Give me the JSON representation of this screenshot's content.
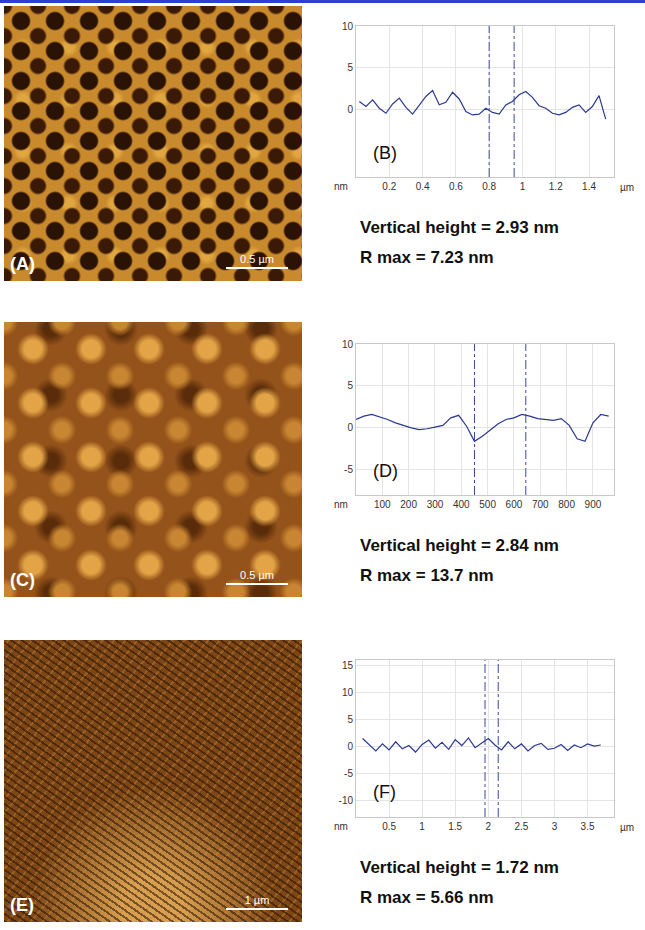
{
  "images": [
    {
      "label": "(A)",
      "scale_bar": "0.5 µm"
    },
    {
      "label": "(C)",
      "scale_bar": "0.5 µm"
    },
    {
      "label": "(E)",
      "scale_bar": "1 µm"
    }
  ],
  "chart_data": [
    {
      "type": "line",
      "label": "(B)",
      "xlabel": "µm",
      "ylabel": "nm",
      "color": "#2b3990",
      "line_style": "solid",
      "grid": true,
      "x": [
        0.02,
        0.06,
        0.1,
        0.14,
        0.18,
        0.22,
        0.26,
        0.3,
        0.34,
        0.38,
        0.42,
        0.46,
        0.5,
        0.54,
        0.58,
        0.62,
        0.66,
        0.7,
        0.74,
        0.78,
        0.82,
        0.86,
        0.9,
        0.94,
        0.98,
        1.02,
        1.06,
        1.1,
        1.14,
        1.18,
        1.22,
        1.26,
        1.3,
        1.34,
        1.38,
        1.42,
        1.46,
        1.5
      ],
      "values": [
        1.0,
        0.4,
        1.2,
        0.2,
        -0.4,
        0.7,
        1.4,
        0.3,
        -0.5,
        0.5,
        1.6,
        2.3,
        0.6,
        0.9,
        2.1,
        1.3,
        -0.2,
        -0.6,
        -0.5,
        0.2,
        -0.3,
        -0.5,
        0.6,
        1.0,
        1.8,
        2.2,
        1.5,
        0.5,
        0.2,
        -0.4,
        -0.6,
        -0.3,
        0.3,
        0.6,
        -0.3,
        0.4,
        1.7,
        -1.1
      ],
      "xlim": [
        0,
        1.55
      ],
      "xticks": [
        0.2,
        0.4,
        0.6,
        0.8,
        1,
        1.2,
        1.4
      ],
      "ylim": [
        -8,
        10
      ],
      "yticks": [
        0,
        5,
        10
      ],
      "cursors": [
        0.8,
        0.95
      ],
      "annotations": [
        "Vertical height = 2.93 nm",
        "R max = 7.23 nm"
      ]
    },
    {
      "type": "line",
      "label": "(D)",
      "ylabel": "nm",
      "color": "#2b3990",
      "line_style": "solid",
      "grid": true,
      "x": [
        0,
        30,
        60,
        90,
        120,
        150,
        180,
        210,
        240,
        270,
        300,
        330,
        360,
        390,
        420,
        450,
        480,
        510,
        540,
        570,
        600,
        630,
        660,
        690,
        720,
        750,
        780,
        810,
        840,
        870,
        900,
        930,
        960
      ],
      "values": [
        1.0,
        1.4,
        1.6,
        1.3,
        1.0,
        0.6,
        0.3,
        0.0,
        -0.2,
        -0.1,
        0.1,
        0.3,
        1.2,
        1.5,
        0.2,
        -1.6,
        -1.0,
        -0.3,
        0.5,
        1.0,
        1.2,
        1.6,
        1.4,
        1.1,
        1.0,
        0.9,
        1.1,
        0.3,
        -1.3,
        -1.6,
        0.6,
        1.6,
        1.4
      ],
      "xlim": [
        0,
        980
      ],
      "xticks": [
        100,
        200,
        300,
        400,
        500,
        600,
        700,
        800,
        900
      ],
      "ylim": [
        -8,
        10
      ],
      "yticks": [
        -5,
        0,
        5,
        10
      ],
      "cursors": [
        450,
        645
      ],
      "annotations": [
        "Vertical height = 2.84 nm",
        "R max = 13.7 nm"
      ]
    },
    {
      "type": "line",
      "label": "(F)",
      "xlabel": "µm",
      "ylabel": "nm",
      "color": "#2b3990",
      "line_style": "solid",
      "grid": true,
      "x": [
        0.1,
        0.2,
        0.3,
        0.4,
        0.5,
        0.6,
        0.7,
        0.8,
        0.9,
        1.0,
        1.1,
        1.2,
        1.3,
        1.4,
        1.5,
        1.6,
        1.7,
        1.8,
        1.9,
        2.0,
        2.1,
        2.2,
        2.3,
        2.4,
        2.5,
        2.6,
        2.7,
        2.8,
        2.9,
        3.0,
        3.1,
        3.2,
        3.3,
        3.4,
        3.5,
        3.6,
        3.7
      ],
      "values": [
        1.5,
        0.3,
        -0.8,
        0.5,
        -0.6,
        0.9,
        -0.4,
        0.2,
        -1.0,
        0.4,
        1.2,
        -0.3,
        0.8,
        -0.5,
        1.3,
        0.2,
        1.6,
        -0.2,
        0.7,
        1.5,
        0.3,
        -0.6,
        0.9,
        -0.4,
        0.5,
        -0.8,
        0.2,
        0.6,
        -0.5,
        -0.3,
        0.4,
        -0.7,
        0.3,
        -0.2,
        0.5,
        0.1,
        0.3
      ],
      "xlim": [
        0,
        3.9
      ],
      "xticks": [
        0.5,
        1,
        1.5,
        2,
        2.5,
        3,
        3.5
      ],
      "ylim": [
        -13,
        16
      ],
      "yticks": [
        -10,
        -5,
        0,
        5,
        10,
        15
      ],
      "cursors": [
        1.95,
        2.15
      ],
      "annotations": [
        "Vertical height = 1.72 nm",
        "R max = 5.66 nm"
      ]
    }
  ]
}
